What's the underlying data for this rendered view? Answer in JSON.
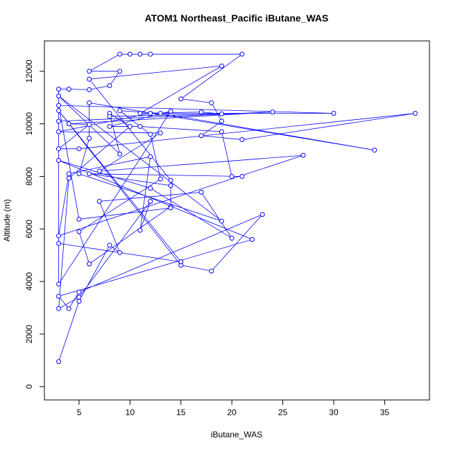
{
  "chart_data": {
    "type": "line",
    "title": "ATOM1 Northeast_Pacific iButane_WAS",
    "x_label": "iButane_WAS",
    "y_label": "Altitude (m)",
    "color": "#0000ff",
    "xlim": [
      1.6,
      39.4
    ],
    "ylim": [
      -506,
      13156
    ],
    "xticks": [
      5,
      10,
      15,
      20,
      25,
      30,
      35
    ],
    "yticks": [
      0,
      2000,
      4000,
      6000,
      8000,
      10000,
      12000
    ],
    "series": [
      {
        "name": "iButane_WAS",
        "x": [
          3,
          5,
          8,
          9,
          7,
          17,
          20,
          12,
          3,
          22,
          3,
          4,
          5,
          23,
          18,
          15,
          3,
          15,
          3,
          3,
          4,
          6,
          8,
          9,
          6,
          9,
          10,
          11,
          12,
          21,
          15,
          18,
          19,
          17,
          21,
          38,
          5,
          3,
          6,
          4,
          24,
          3,
          3,
          14,
          8,
          11,
          19,
          20,
          21,
          6,
          14,
          14,
          6,
          5,
          13,
          12,
          9,
          13,
          34,
          6,
          6,
          5,
          19,
          3,
          9,
          8,
          10,
          4,
          3,
          5,
          12,
          11,
          12,
          4,
          3,
          27,
          7,
          13,
          3,
          12,
          30,
          3,
          5,
          14,
          14,
          6,
          19,
          11,
          17,
          19,
          8
        ],
        "values": [
          950,
          3250,
          5380,
          5100,
          7050,
          7400,
          5650,
          7550,
          8610,
          5600,
          3440,
          2970,
          3600,
          6550,
          4400,
          4620,
          10500,
          4750,
          5450,
          11320,
          11320,
          11300,
          11450,
          12000,
          12000,
          12650,
          12650,
          12650,
          12650,
          12650,
          10950,
          10800,
          10100,
          9550,
          9400,
          10400,
          9050,
          9050,
          9970,
          10000,
          10450,
          10100,
          3900,
          10480,
          9900,
          9900,
          9700,
          8000,
          8000,
          8100,
          7650,
          6850,
          4670,
          5900,
          7900,
          9600,
          10500,
          10400,
          9000,
          10800,
          9450,
          8100,
          6300,
          11060,
          8850,
          10400,
          9900,
          7930,
          2970,
          3400,
          7050,
          5950,
          8750,
          8100,
          5740,
          8800,
          8200,
          9650,
          9700,
          10400,
          10400,
          10700,
          6370,
          6800,
          7850,
          11700,
          12200,
          10400,
          10450,
          10380,
          10280
        ]
      }
    ]
  }
}
